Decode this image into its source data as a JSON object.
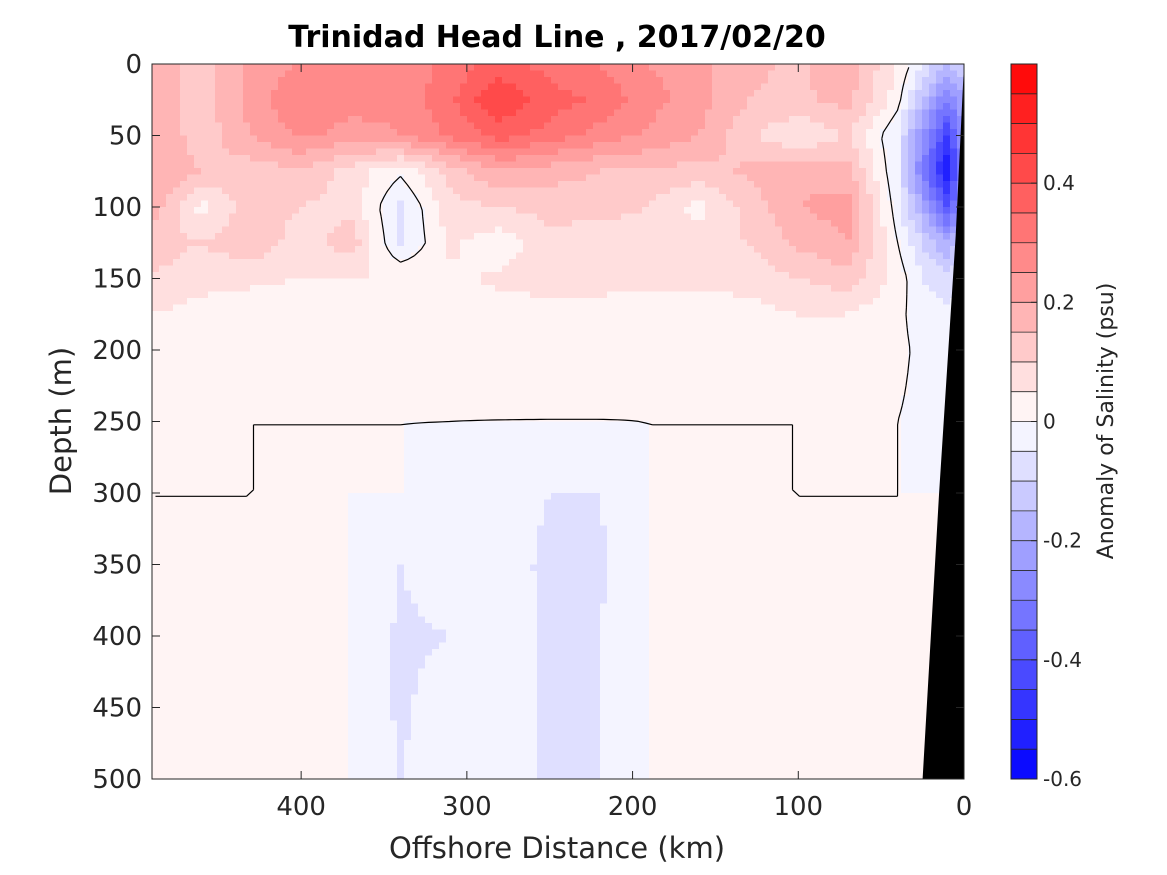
{
  "chart_data": {
    "type": "heatmap",
    "title": "Trinidad Head Line , 2017/02/20",
    "xlabel": "Offshore Distance (km)",
    "ylabel": "Depth (m)",
    "colorbar_label": "Anomaly of Salinity (psu)",
    "xlim": [
      0,
      490
    ],
    "x_reversed": true,
    "ylim": [
      0,
      500
    ],
    "y_reversed": true,
    "x_ticks": [
      400,
      300,
      200,
      100,
      0
    ],
    "y_ticks": [
      0,
      50,
      100,
      150,
      200,
      250,
      300,
      350,
      400,
      450,
      500
    ],
    "colorbar_range": [
      -0.6,
      0.6
    ],
    "colorbar_ticks": [
      0.4,
      0.2,
      0,
      -0.2,
      -0.4,
      -0.6
    ],
    "colorbar_levels": 24,
    "colormap": "blue-white-red",
    "zero_contour": "black",
    "seafloor_color": "#000000",
    "x": [
      490,
      460,
      430,
      400,
      370,
      340,
      310,
      280,
      250,
      220,
      190,
      160,
      130,
      100,
      70,
      40,
      25,
      10,
      0
    ],
    "depth": [
      0,
      25,
      50,
      75,
      100,
      125,
      150,
      175,
      200,
      250,
      300,
      350,
      400,
      450,
      500
    ],
    "anomaly": [
      [
        0.2,
        0.12,
        0.22,
        0.25,
        0.25,
        0.26,
        0.32,
        0.37,
        0.33,
        0.3,
        0.25,
        0.22,
        0.16,
        0.14,
        0.18,
        0.05,
        -0.05,
        -0.15,
        -0.1
      ],
      [
        0.2,
        0.12,
        0.22,
        0.3,
        0.27,
        0.26,
        0.34,
        0.45,
        0.37,
        0.34,
        0.27,
        0.22,
        0.15,
        0.14,
        0.17,
        0.02,
        -0.15,
        -0.3,
        -0.2
      ],
      [
        0.2,
        0.12,
        0.2,
        0.26,
        0.23,
        0.25,
        0.31,
        0.37,
        0.33,
        0.28,
        0.24,
        0.2,
        0.11,
        0.05,
        0.1,
        -0.05,
        -0.25,
        -0.45,
        -0.25
      ],
      [
        0.2,
        0.15,
        0.12,
        0.14,
        0.08,
        0.01,
        0.12,
        0.2,
        0.17,
        0.15,
        0.14,
        0.13,
        0.16,
        0.19,
        0.17,
        -0.05,
        -0.3,
        -0.55,
        -0.25
      ],
      [
        0.18,
        0.03,
        0.13,
        0.1,
        0.08,
        -0.06,
        0.08,
        0.1,
        0.12,
        0.12,
        0.1,
        0.03,
        0.12,
        0.2,
        0.22,
        -0.03,
        -0.2,
        -0.4,
        -0.2
      ],
      [
        0.12,
        0.1,
        0.14,
        0.07,
        0.13,
        -0.06,
        0.06,
        0.02,
        0.08,
        0.07,
        0.06,
        0.08,
        0.1,
        0.16,
        0.2,
        0.0,
        -0.1,
        -0.2,
        -0.1
      ],
      [
        0.1,
        0.07,
        0.06,
        0.05,
        0.05,
        0.05,
        0.04,
        0.06,
        0.07,
        0.06,
        0.06,
        0.06,
        0.07,
        0.1,
        0.13,
        0.03,
        -0.05,
        -0.08,
        -0.05
      ],
      [
        0.05,
        0.03,
        0.02,
        0.02,
        0.02,
        0.02,
        0.01,
        0.03,
        0.03,
        0.04,
        0.03,
        0.03,
        0.03,
        0.05,
        0.05,
        0.01,
        -0.02,
        -0.04,
        -0.02
      ],
      [
        0.02,
        0.01,
        0.01,
        0.01,
        0.01,
        0.01,
        0.01,
        0.01,
        0.01,
        0.01,
        0.01,
        0.01,
        0.01,
        0.01,
        0.02,
        0.01,
        -0.01,
        -0.02,
        -0.01
      ],
      [
        0.01,
        0.01,
        0.0,
        0.0,
        0.0,
        0.0,
        0.0,
        0.0,
        0.0,
        0.0,
        0.0,
        0.0,
        0.0,
        0.0,
        0.01,
        0.0,
        -0.01,
        -0.01,
        -0.01
      ],
      [
        0.0,
        0.0,
        0.0,
        0.0,
        0.0,
        0.0,
        -0.01,
        -0.03,
        -0.05,
        -0.05,
        0.0,
        0.0,
        0.0,
        0.0,
        0.0,
        0.0,
        0.0,
        0.0,
        0.0
      ],
      [
        0.0,
        0.0,
        0.0,
        0.0,
        0.0,
        -0.05,
        -0.02,
        -0.03,
        -0.06,
        -0.06,
        0.0,
        0.0,
        0.0,
        0.0,
        0.0,
        0.0,
        0.0,
        0.0,
        0.0
      ],
      [
        0.0,
        0.0,
        0.0,
        0.0,
        0.0,
        -0.06,
        -0.05,
        -0.02,
        -0.06,
        -0.05,
        0.0,
        0.0,
        0.0,
        0.0,
        0.0,
        0.0,
        0.0,
        0.0,
        0.0
      ],
      [
        0.0,
        0.0,
        0.0,
        0.0,
        0.0,
        -0.06,
        -0.02,
        -0.01,
        -0.06,
        -0.05,
        0.0,
        0.0,
        0.0,
        0.0,
        0.0,
        0.0,
        0.0,
        0.0,
        0.0
      ],
      [
        0.0,
        0.0,
        0.0,
        0.0,
        0.0,
        -0.05,
        -0.01,
        -0.01,
        -0.06,
        -0.05,
        0.0,
        0.0,
        0.0,
        0.0,
        0.0,
        0.0,
        0.0,
        0.0,
        0.0
      ]
    ],
    "seafloor": [
      [
        25,
        500
      ],
      [
        15,
        300
      ],
      [
        5,
        120
      ],
      [
        0,
        0
      ]
    ]
  }
}
